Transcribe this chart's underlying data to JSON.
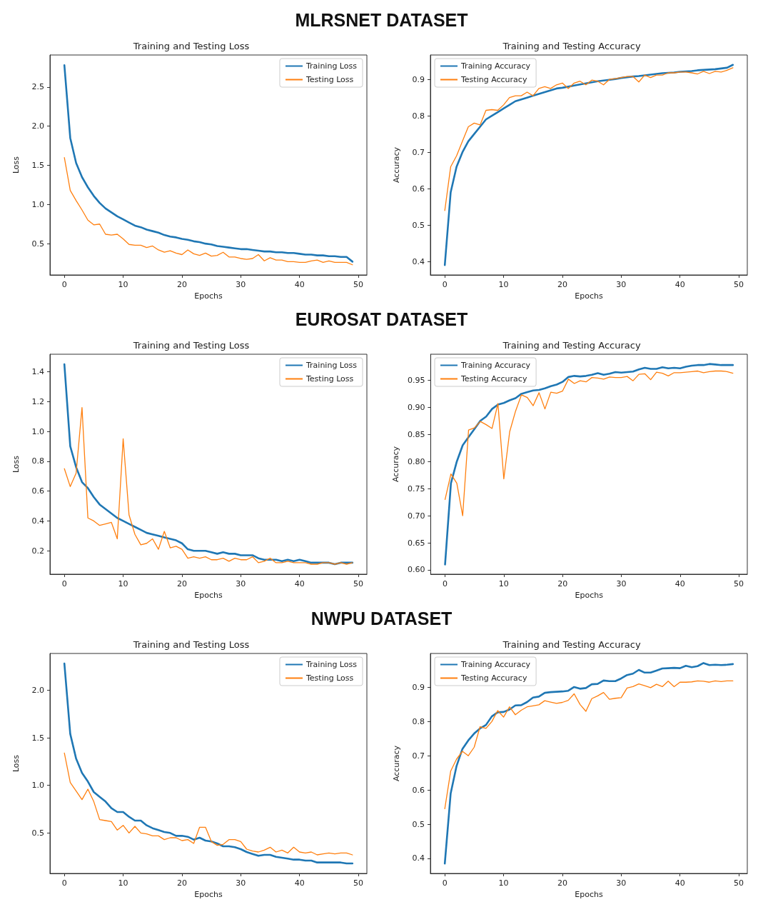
{
  "chart_data": [
    {
      "type": "other",
      "title": "MLRSNET DATASET"
    },
    {
      "type": "line",
      "title": "Training and Testing Loss",
      "xlabel": "Epochs",
      "ylabel": "Loss",
      "legend": "top right",
      "grid": false,
      "marker": "none",
      "line_style": "solid",
      "x": [
        0,
        1,
        2,
        3,
        4,
        5,
        6,
        7,
        8,
        9,
        10,
        11,
        12,
        13,
        14,
        15,
        16,
        17,
        18,
        19,
        20,
        21,
        22,
        23,
        24,
        25,
        26,
        27,
        28,
        29,
        30,
        31,
        32,
        33,
        34,
        35,
        36,
        37,
        38,
        39,
        40,
        41,
        42,
        43,
        44,
        45,
        46,
        47,
        48,
        49
      ],
      "xlim": [
        -2.45,
        51.45
      ],
      "xticks": [
        0,
        10,
        20,
        30,
        40,
        50
      ],
      "ylim": [
        0.1,
        2.91
      ],
      "yticks": [
        {
          "value": 0.5,
          "label": "0.5"
        },
        {
          "value": 1,
          "label": "1.0"
        },
        {
          "value": 1.5,
          "label": "1.5"
        },
        {
          "value": 2,
          "label": "2.0"
        },
        {
          "value": 2.5,
          "label": "2.5"
        }
      ],
      "series": [
        {
          "name": "Training Loss",
          "color": "#1f77b4",
          "values": [
            2.78,
            1.85,
            1.53,
            1.35,
            1.22,
            1.11,
            1.02,
            0.95,
            0.9,
            0.85,
            0.81,
            0.77,
            0.73,
            0.71,
            0.68,
            0.66,
            0.64,
            0.61,
            0.59,
            0.58,
            0.56,
            0.55,
            0.53,
            0.52,
            0.5,
            0.49,
            0.47,
            0.46,
            0.45,
            0.44,
            0.43,
            0.43,
            0.42,
            0.41,
            0.4,
            0.4,
            0.39,
            0.39,
            0.38,
            0.38,
            0.37,
            0.36,
            0.36,
            0.35,
            0.35,
            0.34,
            0.34,
            0.33,
            0.33,
            0.27
          ]
        },
        {
          "name": "Testing Loss",
          "color": "#ff7f0e",
          "values": [
            1.6,
            1.18,
            1.05,
            0.93,
            0.8,
            0.74,
            0.75,
            0.62,
            0.61,
            0.62,
            0.56,
            0.49,
            0.48,
            0.48,
            0.45,
            0.47,
            0.42,
            0.39,
            0.41,
            0.38,
            0.36,
            0.42,
            0.37,
            0.35,
            0.38,
            0.34,
            0.35,
            0.39,
            0.33,
            0.33,
            0.31,
            0.3,
            0.31,
            0.36,
            0.28,
            0.32,
            0.29,
            0.29,
            0.27,
            0.27,
            0.26,
            0.26,
            0.28,
            0.29,
            0.26,
            0.28,
            0.26,
            0.26,
            0.26,
            0.23
          ]
        }
      ]
    },
    {
      "type": "line",
      "title": "Training and Testing Accuracy",
      "xlabel": "Epochs",
      "ylabel": "Accuracy",
      "legend": "top left",
      "grid": false,
      "marker": "none",
      "line_style": "solid",
      "x": [
        0,
        1,
        2,
        3,
        4,
        5,
        6,
        7,
        8,
        9,
        10,
        11,
        12,
        13,
        14,
        15,
        16,
        17,
        18,
        19,
        20,
        21,
        22,
        23,
        24,
        25,
        26,
        27,
        28,
        29,
        30,
        31,
        32,
        33,
        34,
        35,
        36,
        37,
        38,
        39,
        40,
        41,
        42,
        43,
        44,
        45,
        46,
        47,
        48,
        49
      ],
      "xlim": [
        -2.45,
        51.45
      ],
      "xticks": [
        0,
        10,
        20,
        30,
        40,
        50
      ],
      "ylim": [
        0.363,
        0.967
      ],
      "yticks": [
        0.4,
        0.5,
        0.6,
        0.7,
        0.8,
        0.9
      ],
      "series": [
        {
          "name": "Training Accuracy",
          "color": "#1f77b4",
          "values": [
            0.39,
            0.59,
            0.66,
            0.7,
            0.73,
            0.75,
            0.77,
            0.79,
            0.8,
            0.81,
            0.82,
            0.83,
            0.84,
            0.845,
            0.85,
            0.855,
            0.86,
            0.865,
            0.87,
            0.875,
            0.877,
            0.88,
            0.883,
            0.886,
            0.889,
            0.892,
            0.895,
            0.897,
            0.899,
            0.901,
            0.904,
            0.906,
            0.908,
            0.909,
            0.911,
            0.913,
            0.915,
            0.917,
            0.918,
            0.919,
            0.921,
            0.922,
            0.923,
            0.925,
            0.926,
            0.927,
            0.928,
            0.93,
            0.932,
            0.94
          ]
        },
        {
          "name": "Testing Accuracy",
          "color": "#ff7f0e",
          "values": [
            0.54,
            0.66,
            0.69,
            0.73,
            0.77,
            0.78,
            0.775,
            0.815,
            0.817,
            0.815,
            0.83,
            0.85,
            0.855,
            0.855,
            0.865,
            0.855,
            0.875,
            0.88,
            0.875,
            0.885,
            0.89,
            0.875,
            0.89,
            0.895,
            0.885,
            0.898,
            0.895,
            0.885,
            0.9,
            0.902,
            0.905,
            0.908,
            0.908,
            0.893,
            0.912,
            0.905,
            0.912,
            0.912,
            0.918,
            0.918,
            0.92,
            0.92,
            0.918,
            0.915,
            0.922,
            0.916,
            0.922,
            0.92,
            0.925,
            0.932
          ]
        }
      ]
    },
    {
      "type": "other",
      "title": "EUROSAT DATASET"
    },
    {
      "type": "line",
      "title": "Training and Testing Loss",
      "xlabel": "Epochs",
      "ylabel": "Loss",
      "legend": "top right",
      "grid": false,
      "marker": "none",
      "line_style": "solid",
      "x": [
        0,
        1,
        2,
        3,
        4,
        5,
        6,
        7,
        8,
        9,
        10,
        11,
        12,
        13,
        14,
        15,
        16,
        17,
        18,
        19,
        20,
        21,
        22,
        23,
        24,
        25,
        26,
        27,
        28,
        29,
        30,
        31,
        32,
        33,
        34,
        35,
        36,
        37,
        38,
        39,
        40,
        41,
        42,
        43,
        44,
        45,
        46,
        47,
        48,
        49
      ],
      "xlim": [
        -2.45,
        51.45
      ],
      "xticks": [
        0,
        10,
        20,
        30,
        40,
        50
      ],
      "ylim": [
        0.043,
        1.517
      ],
      "yticks": [
        0.2,
        0.4,
        0.6,
        0.8,
        {
          "value": 1,
          "label": "1.0"
        },
        1.2,
        1.4
      ],
      "series": [
        {
          "name": "Training Loss",
          "color": "#1f77b4",
          "values": [
            1.45,
            0.9,
            0.76,
            0.66,
            0.62,
            0.56,
            0.51,
            0.48,
            0.45,
            0.42,
            0.4,
            0.38,
            0.36,
            0.34,
            0.32,
            0.31,
            0.3,
            0.29,
            0.28,
            0.27,
            0.25,
            0.21,
            0.2,
            0.2,
            0.2,
            0.19,
            0.18,
            0.19,
            0.18,
            0.18,
            0.17,
            0.17,
            0.17,
            0.15,
            0.14,
            0.14,
            0.14,
            0.13,
            0.14,
            0.13,
            0.14,
            0.13,
            0.12,
            0.12,
            0.12,
            0.12,
            0.11,
            0.12,
            0.12,
            0.12
          ]
        },
        {
          "name": "Testing Loss",
          "color": "#ff7f0e",
          "values": [
            0.75,
            0.63,
            0.72,
            1.16,
            0.42,
            0.4,
            0.37,
            0.38,
            0.39,
            0.28,
            0.95,
            0.44,
            0.31,
            0.24,
            0.25,
            0.28,
            0.21,
            0.33,
            0.22,
            0.23,
            0.21,
            0.15,
            0.16,
            0.15,
            0.16,
            0.14,
            0.14,
            0.15,
            0.13,
            0.15,
            0.14,
            0.14,
            0.16,
            0.12,
            0.13,
            0.15,
            0.12,
            0.12,
            0.13,
            0.12,
            0.12,
            0.12,
            0.11,
            0.11,
            0.12,
            0.12,
            0.11,
            0.12,
            0.11,
            0.12
          ]
        }
      ]
    },
    {
      "type": "line",
      "title": "Training and Testing Accuracy",
      "xlabel": "Epochs",
      "ylabel": "Accuracy",
      "legend": "top left",
      "grid": false,
      "marker": "none",
      "line_style": "solid",
      "x": [
        0,
        1,
        2,
        3,
        4,
        5,
        6,
        7,
        8,
        9,
        10,
        11,
        12,
        13,
        14,
        15,
        16,
        17,
        18,
        19,
        20,
        21,
        22,
        23,
        24,
        25,
        26,
        27,
        28,
        29,
        30,
        31,
        32,
        33,
        34,
        35,
        36,
        37,
        38,
        39,
        40,
        41,
        42,
        43,
        44,
        45,
        46,
        47,
        48,
        49
      ],
      "xlim": [
        -2.45,
        51.45
      ],
      "xticks": [
        0,
        10,
        20,
        30,
        40,
        50
      ],
      "ylim": [
        0.592,
        0.998
      ],
      "yticks": [
        {
          "value": 0.6,
          "label": "0.60"
        },
        0.65,
        {
          "value": 0.7,
          "label": "0.70"
        },
        0.75,
        {
          "value": 0.8,
          "label": "0.80"
        },
        0.85,
        {
          "value": 0.9,
          "label": "0.90"
        },
        0.95
      ],
      "series": [
        {
          "name": "Training Accuracy",
          "color": "#1f77b4",
          "values": [
            0.61,
            0.76,
            0.8,
            0.83,
            0.845,
            0.86,
            0.875,
            0.883,
            0.897,
            0.905,
            0.908,
            0.913,
            0.917,
            0.925,
            0.928,
            0.931,
            0.932,
            0.935,
            0.939,
            0.942,
            0.947,
            0.956,
            0.958,
            0.957,
            0.958,
            0.96,
            0.963,
            0.96,
            0.962,
            0.965,
            0.964,
            0.965,
            0.966,
            0.97,
            0.973,
            0.971,
            0.971,
            0.974,
            0.972,
            0.973,
            0.972,
            0.975,
            0.977,
            0.978,
            0.978,
            0.98,
            0.979,
            0.978,
            0.978,
            0.978
          ]
        },
        {
          "name": "Testing Accuracy",
          "color": "#ff7f0e",
          "values": [
            0.73,
            0.777,
            0.76,
            0.7,
            0.858,
            0.862,
            0.874,
            0.868,
            0.861,
            0.907,
            0.768,
            0.855,
            0.893,
            0.923,
            0.918,
            0.903,
            0.927,
            0.897,
            0.928,
            0.926,
            0.93,
            0.952,
            0.944,
            0.949,
            0.947,
            0.955,
            0.954,
            0.952,
            0.956,
            0.955,
            0.955,
            0.957,
            0.949,
            0.961,
            0.962,
            0.951,
            0.965,
            0.963,
            0.958,
            0.964,
            0.964,
            0.965,
            0.966,
            0.967,
            0.964,
            0.966,
            0.967,
            0.967,
            0.966,
            0.963
          ]
        }
      ]
    },
    {
      "type": "other",
      "title": "NWPU DATASET"
    },
    {
      "type": "line",
      "title": "Training and Testing Loss",
      "xlabel": "Epochs",
      "ylabel": "Loss",
      "legend": "top right",
      "grid": false,
      "marker": "none",
      "line_style": "solid",
      "x": [
        0,
        1,
        2,
        3,
        4,
        5,
        6,
        7,
        8,
        9,
        10,
        11,
        12,
        13,
        14,
        15,
        16,
        17,
        18,
        19,
        20,
        21,
        22,
        23,
        24,
        25,
        26,
        27,
        28,
        29,
        30,
        31,
        32,
        33,
        34,
        35,
        36,
        37,
        38,
        39,
        40,
        41,
        42,
        43,
        44,
        45,
        46,
        47,
        48,
        49
      ],
      "xlim": [
        -2.45,
        51.45
      ],
      "xticks": [
        0,
        10,
        20,
        30,
        40,
        50
      ],
      "ylim": [
        0.075,
        2.385
      ],
      "yticks": [
        {
          "value": 0.5,
          "label": "0.5"
        },
        {
          "value": 1,
          "label": "1.0"
        },
        {
          "value": 1.5,
          "label": "1.5"
        },
        {
          "value": 2,
          "label": "2.0"
        }
      ],
      "series": [
        {
          "name": "Training Loss",
          "color": "#1f77b4",
          "values": [
            2.28,
            1.54,
            1.28,
            1.13,
            1.04,
            0.93,
            0.88,
            0.83,
            0.76,
            0.72,
            0.72,
            0.67,
            0.63,
            0.63,
            0.58,
            0.55,
            0.53,
            0.51,
            0.5,
            0.47,
            0.47,
            0.46,
            0.43,
            0.45,
            0.42,
            0.41,
            0.39,
            0.36,
            0.36,
            0.35,
            0.33,
            0.3,
            0.28,
            0.26,
            0.27,
            0.27,
            0.25,
            0.24,
            0.23,
            0.22,
            0.22,
            0.21,
            0.21,
            0.19,
            0.19,
            0.19,
            0.19,
            0.19,
            0.18,
            0.18
          ]
        },
        {
          "name": "Testing Loss",
          "color": "#ff7f0e",
          "values": [
            1.34,
            1.03,
            0.94,
            0.85,
            0.96,
            0.83,
            0.64,
            0.63,
            0.62,
            0.53,
            0.58,
            0.5,
            0.57,
            0.5,
            0.49,
            0.47,
            0.47,
            0.43,
            0.45,
            0.45,
            0.42,
            0.43,
            0.39,
            0.56,
            0.56,
            0.41,
            0.37,
            0.38,
            0.43,
            0.43,
            0.41,
            0.33,
            0.31,
            0.3,
            0.32,
            0.35,
            0.3,
            0.32,
            0.29,
            0.35,
            0.3,
            0.29,
            0.3,
            0.27,
            0.28,
            0.29,
            0.28,
            0.29,
            0.29,
            0.27
          ]
        }
      ]
    },
    {
      "type": "line",
      "title": "Training and Testing Accuracy",
      "xlabel": "Epochs",
      "ylabel": "Accuracy",
      "legend": "top left",
      "grid": false,
      "marker": "none",
      "line_style": "solid",
      "x": [
        0,
        1,
        2,
        3,
        4,
        5,
        6,
        7,
        8,
        9,
        10,
        11,
        12,
        13,
        14,
        15,
        16,
        17,
        18,
        19,
        20,
        21,
        22,
        23,
        24,
        25,
        26,
        27,
        28,
        29,
        30,
        31,
        32,
        33,
        34,
        35,
        36,
        37,
        38,
        39,
        40,
        41,
        42,
        43,
        44,
        45,
        46,
        47,
        48,
        49
      ],
      "xlim": [
        -2.45,
        51.45
      ],
      "xticks": [
        0,
        10,
        20,
        30,
        40,
        50
      ],
      "ylim": [
        0.356,
        0.999
      ],
      "yticks": [
        0.4,
        0.5,
        0.6,
        0.7,
        0.8,
        0.9
      ],
      "series": [
        {
          "name": "Training Accuracy",
          "color": "#1f77b4",
          "values": [
            0.385,
            0.59,
            0.67,
            0.72,
            0.745,
            0.765,
            0.78,
            0.79,
            0.815,
            0.827,
            0.828,
            0.835,
            0.847,
            0.848,
            0.857,
            0.87,
            0.873,
            0.884,
            0.886,
            0.887,
            0.888,
            0.89,
            0.901,
            0.896,
            0.898,
            0.909,
            0.91,
            0.92,
            0.918,
            0.918,
            0.926,
            0.936,
            0.94,
            0.951,
            0.943,
            0.943,
            0.949,
            0.955,
            0.956,
            0.957,
            0.956,
            0.963,
            0.959,
            0.962,
            0.971,
            0.965,
            0.966,
            0.965,
            0.966,
            0.968
          ]
        },
        {
          "name": "Testing Accuracy",
          "color": "#ff7f0e",
          "values": [
            0.545,
            0.655,
            0.69,
            0.713,
            0.7,
            0.725,
            0.785,
            0.78,
            0.8,
            0.832,
            0.813,
            0.843,
            0.82,
            0.833,
            0.843,
            0.846,
            0.849,
            0.861,
            0.857,
            0.853,
            0.856,
            0.862,
            0.881,
            0.85,
            0.83,
            0.867,
            0.875,
            0.885,
            0.865,
            0.868,
            0.87,
            0.898,
            0.902,
            0.91,
            0.905,
            0.899,
            0.909,
            0.902,
            0.918,
            0.902,
            0.915,
            0.915,
            0.916,
            0.919,
            0.918,
            0.915,
            0.919,
            0.917,
            0.919,
            0.919
          ]
        }
      ]
    }
  ]
}
